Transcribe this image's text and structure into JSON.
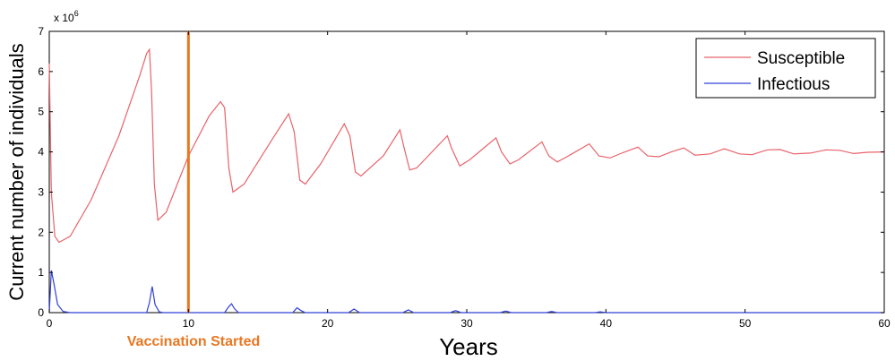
{
  "chart_data": {
    "type": "line",
    "xlabel": "Years",
    "ylabel": "Current number of individuals",
    "y_multiplier_label": "x 10",
    "y_multiplier_exponent": "6",
    "xlim": [
      0,
      60
    ],
    "ylim": [
      0,
      7
    ],
    "x_ticks": [
      0,
      10,
      20,
      30,
      40,
      50,
      60
    ],
    "y_ticks": [
      0,
      1,
      2,
      3,
      4,
      5,
      6,
      7
    ],
    "grid": false,
    "legend_position": "top-right",
    "series": [
      {
        "name": "Susceptible",
        "color": "#e8636a",
        "points": [
          [
            0,
            6.2
          ],
          [
            0.15,
            3.0
          ],
          [
            0.4,
            1.9
          ],
          [
            0.7,
            1.75
          ],
          [
            1.5,
            1.9
          ],
          [
            3,
            2.8
          ],
          [
            5,
            4.4
          ],
          [
            6.5,
            5.9
          ],
          [
            7,
            6.45
          ],
          [
            7.2,
            6.55
          ],
          [
            7.35,
            5.5
          ],
          [
            7.55,
            3.2
          ],
          [
            7.8,
            2.3
          ],
          [
            8.4,
            2.5
          ],
          [
            10,
            3.9
          ],
          [
            11.5,
            4.9
          ],
          [
            12.3,
            5.25
          ],
          [
            12.6,
            5.1
          ],
          [
            12.9,
            3.6
          ],
          [
            13.2,
            3.0
          ],
          [
            14,
            3.2
          ],
          [
            16,
            4.3
          ],
          [
            17.2,
            4.95
          ],
          [
            17.6,
            4.5
          ],
          [
            18,
            3.3
          ],
          [
            18.4,
            3.2
          ],
          [
            19.5,
            3.7
          ],
          [
            21.2,
            4.7
          ],
          [
            21.6,
            4.4
          ],
          [
            22,
            3.5
          ],
          [
            22.4,
            3.4
          ],
          [
            24,
            3.9
          ],
          [
            25.2,
            4.55
          ],
          [
            25.5,
            4.1
          ],
          [
            25.9,
            3.55
          ],
          [
            26.4,
            3.6
          ],
          [
            28.6,
            4.4
          ],
          [
            28.9,
            4.1
          ],
          [
            29.5,
            3.65
          ],
          [
            30.2,
            3.8
          ],
          [
            32.1,
            4.35
          ],
          [
            32.5,
            4.0
          ],
          [
            33.1,
            3.7
          ],
          [
            33.7,
            3.8
          ],
          [
            35.4,
            4.25
          ],
          [
            35.9,
            3.9
          ],
          [
            36.5,
            3.75
          ],
          [
            37.3,
            3.9
          ],
          [
            38.8,
            4.2
          ],
          [
            39.5,
            3.9
          ],
          [
            40.3,
            3.85
          ],
          [
            41.2,
            3.98
          ],
          [
            42.3,
            4.12
          ],
          [
            43,
            3.9
          ],
          [
            43.8,
            3.88
          ],
          [
            44.7,
            4.0
          ],
          [
            45.6,
            4.1
          ],
          [
            46.4,
            3.92
          ],
          [
            47.5,
            3.95
          ],
          [
            48.5,
            4.08
          ],
          [
            49.6,
            3.95
          ],
          [
            50.5,
            3.93
          ],
          [
            51.6,
            4.05
          ],
          [
            52.5,
            4.06
          ],
          [
            53.5,
            3.95
          ],
          [
            54.7,
            3.97
          ],
          [
            55.8,
            4.05
          ],
          [
            56.8,
            4.04
          ],
          [
            57.8,
            3.96
          ],
          [
            58.8,
            3.99
          ],
          [
            60,
            4.0
          ]
        ]
      },
      {
        "name": "Infectious",
        "color": "#3040d8",
        "points": [
          [
            0,
            0.0
          ],
          [
            0.15,
            1.05
          ],
          [
            0.35,
            0.7
          ],
          [
            0.6,
            0.2
          ],
          [
            1,
            0.03
          ],
          [
            1.5,
            0.0
          ],
          [
            7,
            0.0
          ],
          [
            7.2,
            0.25
          ],
          [
            7.4,
            0.65
          ],
          [
            7.6,
            0.2
          ],
          [
            7.9,
            0.02
          ],
          [
            8.2,
            0.0
          ],
          [
            12.6,
            0.0
          ],
          [
            12.9,
            0.15
          ],
          [
            13.1,
            0.22
          ],
          [
            13.3,
            0.1
          ],
          [
            13.6,
            0.0
          ],
          [
            17.5,
            0.0
          ],
          [
            17.8,
            0.12
          ],
          [
            18.1,
            0.05
          ],
          [
            18.4,
            0.0
          ],
          [
            21.5,
            0.0
          ],
          [
            21.9,
            0.09
          ],
          [
            22.3,
            0.0
          ],
          [
            25.4,
            0.0
          ],
          [
            25.8,
            0.07
          ],
          [
            26.2,
            0.0
          ],
          [
            28.8,
            0.0
          ],
          [
            29.2,
            0.05
          ],
          [
            29.6,
            0.0
          ],
          [
            32.4,
            0.0
          ],
          [
            32.8,
            0.04
          ],
          [
            33.2,
            0.0
          ],
          [
            35.7,
            0.0
          ],
          [
            36.1,
            0.03
          ],
          [
            36.5,
            0.0
          ],
          [
            39.2,
            0.0
          ],
          [
            39.6,
            0.02
          ],
          [
            40,
            0.0
          ],
          [
            60,
            0.0
          ]
        ]
      }
    ],
    "annotations": [
      {
        "text": "Vaccination Started",
        "x": 10,
        "color": "#e87722"
      }
    ]
  }
}
